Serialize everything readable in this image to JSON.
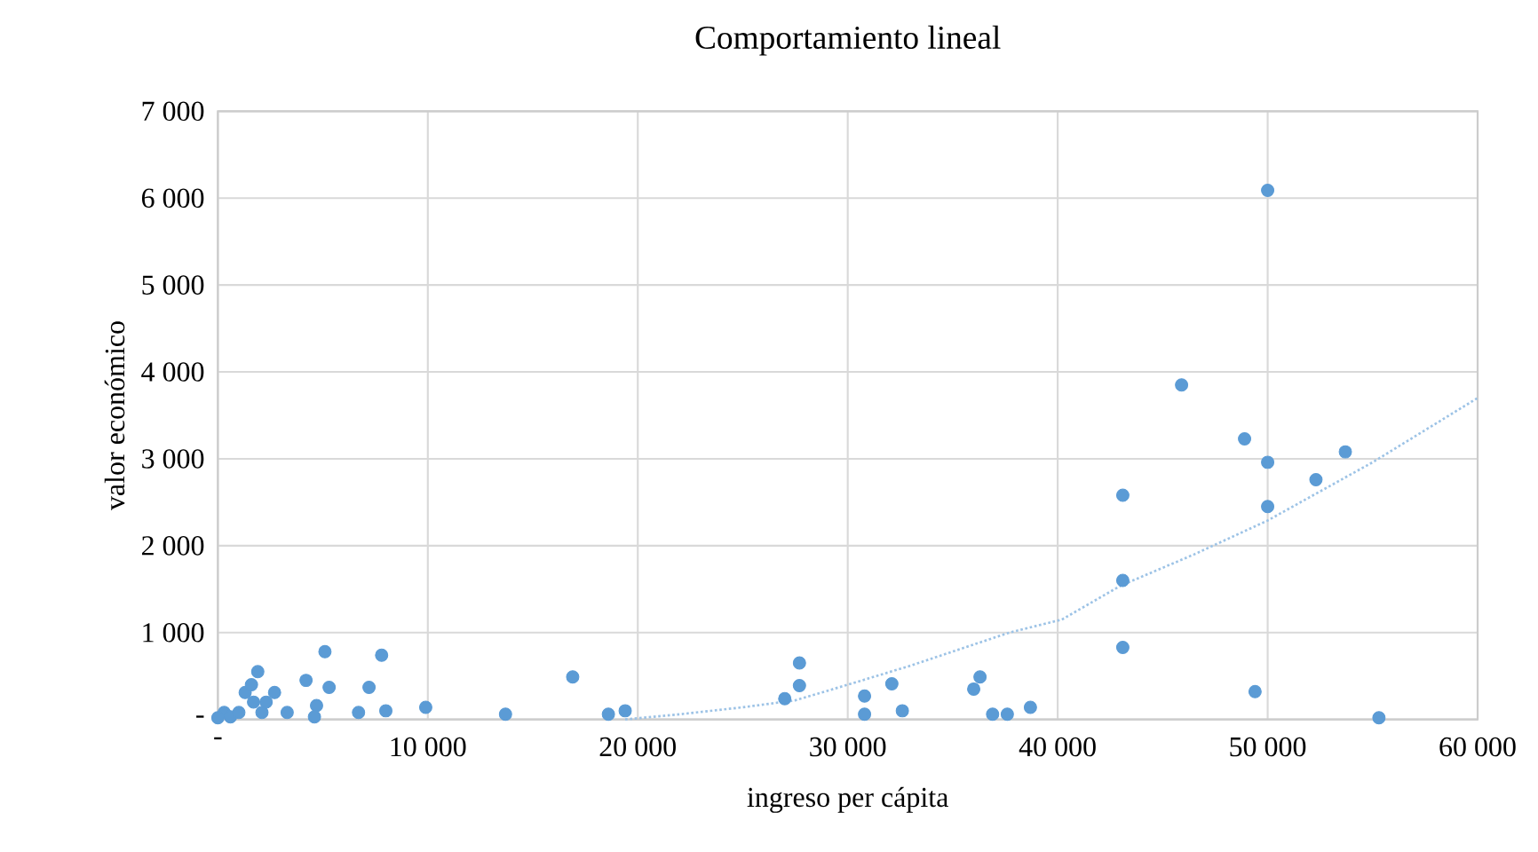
{
  "chart_data": {
    "type": "scatter",
    "title": "Comportamiento lineal",
    "xlabel": "ingreso per cápita",
    "ylabel": "valor económico",
    "xlim": [
      0,
      60000
    ],
    "ylim": [
      0,
      7000
    ],
    "xticks": [
      {
        "value": 0,
        "label": "-"
      },
      {
        "value": 10000,
        "label": "10 000"
      },
      {
        "value": 20000,
        "label": "20 000"
      },
      {
        "value": 30000,
        "label": "30 000"
      },
      {
        "value": 40000,
        "label": "40 000"
      },
      {
        "value": 50000,
        "label": "50 000"
      },
      {
        "value": 60000,
        "label": "60 000"
      }
    ],
    "yticks": [
      {
        "value": 0,
        "label": "-"
      },
      {
        "value": 1000,
        "label": "1 000"
      },
      {
        "value": 2000,
        "label": "2 000"
      },
      {
        "value": 3000,
        "label": "3 000"
      },
      {
        "value": 4000,
        "label": "4 000"
      },
      {
        "value": 5000,
        "label": "5 000"
      },
      {
        "value": 6000,
        "label": "6 000"
      },
      {
        "value": 7000,
        "label": "7 000"
      }
    ],
    "grid": true,
    "marker": "circle",
    "series": [
      {
        "color": "#5b9bd5",
        "x": [
          300,
          600,
          1000,
          1300,
          1700,
          1900,
          2100,
          2300,
          3300,
          4200,
          4700,
          5100,
          5300,
          6700,
          7200,
          7800,
          8000,
          9900,
          13700,
          16900,
          18600,
          19400,
          0,
          1600,
          4600,
          2700,
          27000,
          27700,
          27700,
          30800,
          30800,
          32100,
          32600,
          36000,
          36300,
          36900,
          37600,
          38700,
          43100,
          43100,
          43100,
          45900,
          48900,
          49400,
          50000,
          50000,
          50000,
          52300,
          53700,
          55300
        ],
        "values": [
          80,
          30,
          80,
          310,
          200,
          550,
          80,
          200,
          80,
          450,
          160,
          780,
          370,
          80,
          370,
          740,
          100,
          140,
          60,
          490,
          60,
          100,
          20,
          400,
          30,
          310,
          240,
          390,
          650,
          60,
          270,
          410,
          100,
          350,
          490,
          60,
          60,
          140,
          830,
          1600,
          2580,
          3850,
          3230,
          320,
          6090,
          2960,
          2450,
          2760,
          3080,
          20
        ]
      },
      {
        "type": "line",
        "line_style": "dotted",
        "marker": "none",
        "color": "#9dc3e6",
        "x": [
          19400,
          22000,
          25000,
          27500,
          30000,
          33000,
          37700,
          40200,
          43000,
          46500,
          50000,
          55000,
          60000
        ],
        "values": [
          0,
          60,
          140,
          220,
          400,
          620,
          1000,
          1150,
          1540,
          1900,
          2290,
          2960,
          3700
        ]
      }
    ]
  }
}
